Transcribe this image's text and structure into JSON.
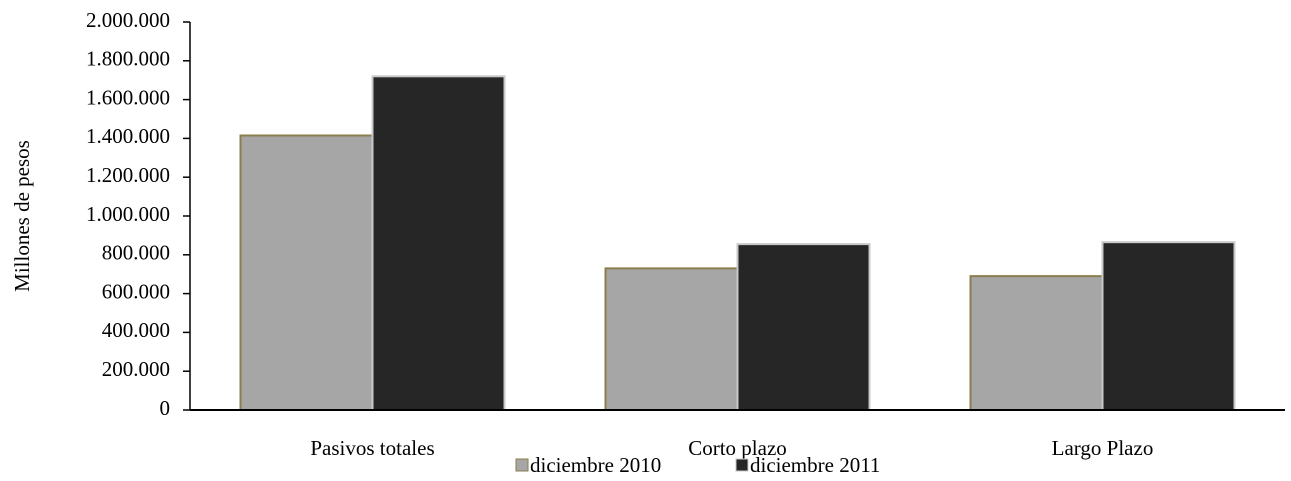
{
  "chart_data": {
    "type": "bar",
    "y_label": "Millones  de  pesos",
    "categories": [
      "Pasivos totales",
      "Corto plazo",
      "Largo Plazo"
    ],
    "series": [
      {
        "name": "diciembre 2010",
        "color": "#a6a6a6",
        "stroke": "#8b7d4e",
        "values": [
          1415000,
          730000,
          690000
        ]
      },
      {
        "name": "diciembre 2011",
        "color": "#262626",
        "stroke": "#c8c8c8",
        "values": [
          1720000,
          855000,
          865000
        ]
      }
    ],
    "ylim": [
      0,
      2000000
    ],
    "yticks": [
      0,
      {
        "value": 200000,
        "label": "200.000"
      },
      {
        "value": 400000,
        "label": "400.000"
      },
      {
        "value": 600000,
        "label": "600.000"
      },
      {
        "value": 800000,
        "label": "800.000"
      },
      {
        "value": 1000000,
        "label": "1.000.000"
      },
      {
        "value": 1200000,
        "label": "1.200.000"
      },
      {
        "value": 1400000,
        "label": "1.400.000"
      },
      {
        "value": 1600000,
        "label": "1.600.000"
      },
      {
        "value": 1800000,
        "label": "1.800.000"
      },
      {
        "value": 2000000,
        "label": "2.000.000"
      }
    ],
    "grid": false
  }
}
